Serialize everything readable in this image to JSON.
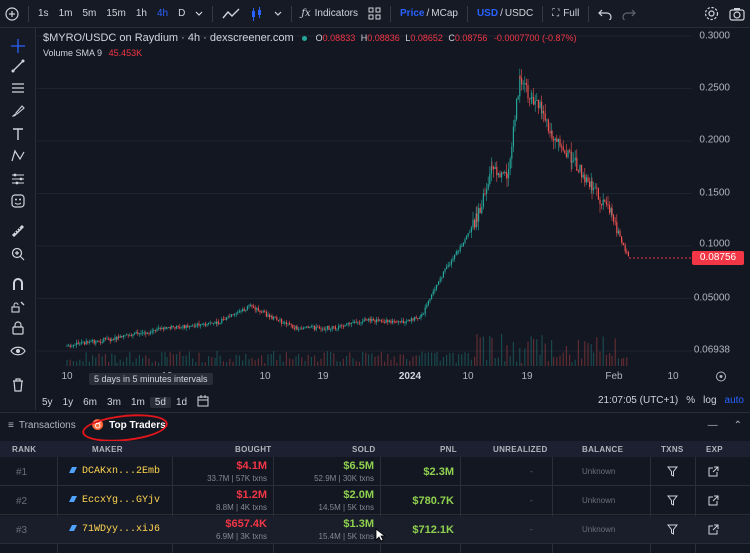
{
  "toolbar": {
    "intervals": [
      "1s",
      "1m",
      "5m",
      "15m",
      "1h",
      "4h",
      "D"
    ],
    "active_interval": "4h",
    "indicators_label": "Indicators",
    "price_label": "Price",
    "mcap_label": "MCap",
    "usd_label": "USD",
    "usdc_label": "USDC",
    "full_label": "Full",
    "icons": [
      "plus-circle-icon",
      "candles-icon",
      "indicators-icon",
      "layout-icon",
      "undo-icon",
      "settings-icon",
      "camera-icon"
    ]
  },
  "left_tools": [
    "crosshair-icon",
    "trendline-icon",
    "fib-icon",
    "brush-icon",
    "text-icon",
    "pattern-icon",
    "measure-icon",
    "emoji-icon",
    "ruler-icon",
    "zoom-icon",
    "magnet-icon",
    "lock-drawing-icon",
    "lock-icon",
    "eye-icon",
    "trash-icon"
  ],
  "chart": {
    "symbol": "$MYRO/USDC on Raydium · 4h · dexscreener.com",
    "ohlc": {
      "o_label": "O",
      "o": "0.08833",
      "h_label": "H",
      "h": "0.08836",
      "l_label": "L",
      "l": "0.08652",
      "c_label": "C",
      "c": "0.08756",
      "change": "-0.0007700 (-0.87%)"
    },
    "volume_label": "Volume SMA 9",
    "volume_value": "45.453K",
    "price_ticks": [
      "0.3000",
      "0.2500",
      "0.2000",
      "0.1500",
      "0.1000",
      "0.05000",
      "0.06938"
    ],
    "last_price": "0.08756",
    "time_ticks": [
      "10",
      "19",
      "10",
      "19",
      "2024",
      "10",
      "19",
      "Feb",
      "10"
    ],
    "tooltip": "5 days in 5 minutes intervals",
    "colors": {
      "up": "#26a69a",
      "down": "#ef5350",
      "last_price": "#f23645"
    }
  },
  "rangebar": {
    "ranges": [
      "5y",
      "1y",
      "6m",
      "3m",
      "1m",
      "5d",
      "1d"
    ],
    "active_range": "5d",
    "time": "21:07:05 (UTC+1)",
    "percent": "%",
    "log": "log",
    "auto": "auto"
  },
  "panel": {
    "tabs": [
      "Transactions",
      "Top Traders"
    ],
    "active_tab": "Top Traders",
    "columns": [
      "RANK",
      "MAKER",
      "BOUGHT",
      "SOLD",
      "PNL",
      "UNREALIZED",
      "BALANCE",
      "TXNS",
      "EXP"
    ],
    "rows": [
      {
        "rank": "#1",
        "maker": "DCAKxn...2Emb",
        "bought": "$4.1M",
        "bought_sub1": "33.7M",
        "bought_sub2": "57K txns",
        "sold": "$6.5M",
        "sold_sub1": "52.9M",
        "sold_sub2": "30K txns",
        "pnl": "$2.3M",
        "unrealized": "-",
        "balance": "Unknown"
      },
      {
        "rank": "#2",
        "maker": "EccxYg...GYjv",
        "bought": "$1.2M",
        "bought_sub1": "8.8M",
        "bought_sub2": "4K txns",
        "sold": "$2.0M",
        "sold_sub1": "14.5M",
        "sold_sub2": "5K txns",
        "pnl": "$780.7K",
        "unrealized": "-",
        "balance": "Unknown"
      },
      {
        "rank": "#3",
        "maker": "71WDyy...xiJ6",
        "bought": "$657.4K",
        "bought_sub1": "6.9M",
        "bought_sub2": "3K txns",
        "sold": "$1.3M",
        "sold_sub1": "15.4M",
        "sold_sub2": "5K txns",
        "pnl": "$712.1K",
        "unrealized": "-",
        "balance": "Unknown"
      }
    ]
  }
}
